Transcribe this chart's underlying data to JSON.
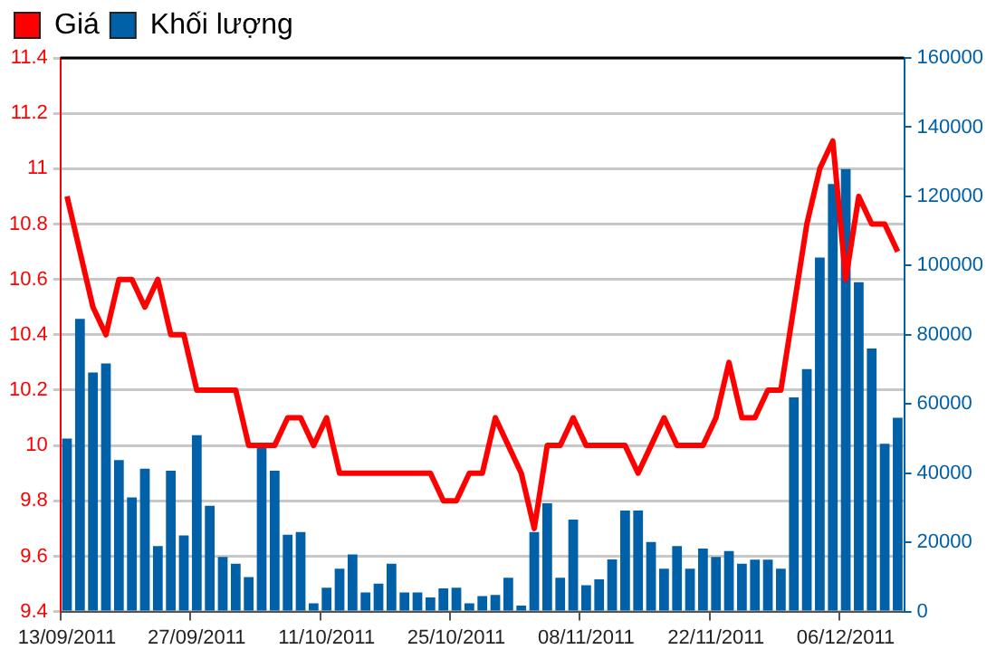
{
  "chart_data": {
    "type": "bar",
    "categories": [
      "13/09/2011",
      null,
      null,
      null,
      null,
      null,
      null,
      null,
      null,
      null,
      "27/09/2011",
      null,
      null,
      null,
      null,
      null,
      null,
      null,
      null,
      null,
      "11/10/2011",
      null,
      null,
      null,
      null,
      null,
      null,
      null,
      null,
      null,
      "25/10/2011",
      null,
      null,
      null,
      null,
      null,
      null,
      null,
      null,
      null,
      "08/11/2011",
      null,
      null,
      null,
      null,
      null,
      null,
      null,
      null,
      null,
      "22/11/2011",
      null,
      null,
      null,
      null,
      null,
      null,
      null,
      null,
      null,
      "06/12/2011",
      null,
      null,
      null,
      null
    ],
    "series": [
      {
        "name": "Giá",
        "type": "line",
        "color": "#ff0000",
        "values": [
          10.9,
          10.7,
          10.5,
          10.4,
          10.6,
          10.6,
          10.5,
          10.6,
          10.4,
          10.4,
          10.2,
          10.2,
          10.2,
          10.2,
          10.0,
          10.0,
          10.0,
          10.1,
          10.1,
          10.0,
          10.1,
          9.9,
          9.9,
          9.9,
          9.9,
          9.9,
          9.9,
          9.9,
          9.9,
          9.8,
          9.8,
          9.9,
          9.9,
          10.1,
          10.0,
          9.9,
          9.7,
          10.0,
          10.0,
          10.1,
          10.0,
          10.0,
          10.0,
          10.0,
          9.9,
          10.0,
          10.1,
          10.0,
          10.0,
          10.0,
          10.1,
          10.3,
          10.1,
          10.1,
          10.2,
          10.2,
          10.5,
          10.8,
          11.0,
          11.1,
          10.6,
          10.9,
          10.8,
          10.8,
          10.7
        ]
      },
      {
        "name": "Khối lượng",
        "axis": "y2",
        "color": "#0060a8",
        "values": [
          50000,
          84600,
          69100,
          71700,
          43800,
          33000,
          41300,
          18900,
          40700,
          22000,
          51000,
          30600,
          15800,
          13800,
          10000,
          47600,
          40700,
          22200,
          23000,
          2400,
          6900,
          12400,
          16500,
          5500,
          8100,
          13800,
          5500,
          5500,
          4100,
          6700,
          6900,
          2400,
          4500,
          4800,
          9800,
          1700,
          23000,
          31300,
          9800,
          26600,
          7600,
          9300,
          15100,
          29200,
          29200,
          20100,
          12400,
          18900,
          12400,
          18200,
          15800,
          17500,
          13800,
          15000,
          15000,
          12400,
          61900,
          70100,
          102300,
          123600,
          127900,
          95200,
          76000,
          48500,
          56000
        ]
      }
    ],
    "ylim": [
      9.4,
      11.4
    ],
    "yticks": [
      9.4,
      9.6,
      9.8,
      10,
      10.2,
      10.4,
      10.6,
      10.8,
      11,
      11.2,
      11.4
    ],
    "y2lim": [
      0,
      160000
    ],
    "y2ticks": [
      0,
      20000,
      40000,
      60000,
      80000,
      100000,
      120000,
      140000,
      160000
    ],
    "grid": "y",
    "legend": "top left"
  }
}
